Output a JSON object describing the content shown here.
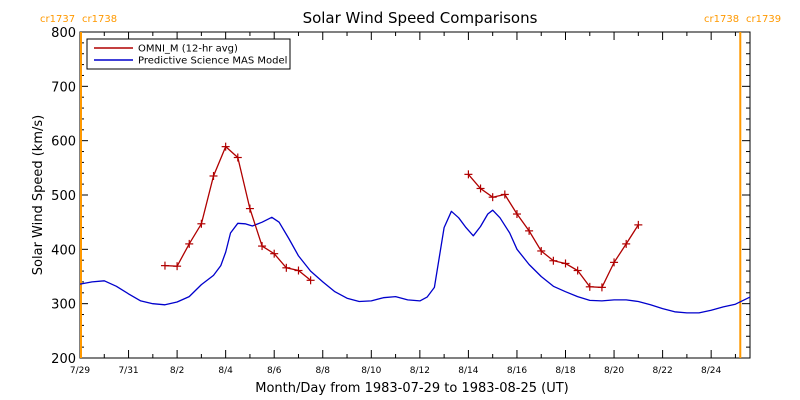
{
  "chart_data": {
    "type": "line",
    "title": "Solar Wind Speed Comparisons",
    "xlabel": "Month/Day from 1983-07-29 to 1983-08-25 (UT)",
    "ylabel": "Solar Wind Speed (km/s)",
    "xlim": [
      0,
      27.6
    ],
    "ylim": [
      200,
      800
    ],
    "x_ticks": [
      {
        "day": 0,
        "label": "7/29"
      },
      {
        "day": 2,
        "label": "7/31"
      },
      {
        "day": 4,
        "label": "8/2"
      },
      {
        "day": 6,
        "label": "8/4"
      },
      {
        "day": 8,
        "label": "8/6"
      },
      {
        "day": 10,
        "label": "8/8"
      },
      {
        "day": 12,
        "label": "8/10"
      },
      {
        "day": 14,
        "label": "8/12"
      },
      {
        "day": 16,
        "label": "8/14"
      },
      {
        "day": 18,
        "label": "8/16"
      },
      {
        "day": 20,
        "label": "8/18"
      },
      {
        "day": 22,
        "label": "8/20"
      },
      {
        "day": 24,
        "label": "8/22"
      },
      {
        "day": 26,
        "label": "8/24"
      }
    ],
    "y_ticks": [
      200,
      300,
      400,
      500,
      600,
      700,
      800
    ],
    "legend_position": "top-left",
    "carrington_markers": [
      {
        "day": 0,
        "left_label": "cr1737",
        "right_label": "cr1738",
        "color": "#ff9900"
      },
      {
        "day": 27.2,
        "left_label": "cr1738",
        "right_label": "cr1739",
        "color": "#ff9900"
      }
    ],
    "series": [
      {
        "name": "OMNI_M (12-hr avg)",
        "color": "#b00000",
        "markers": "plus",
        "segments": [
          [
            [
              3.5,
              370
            ],
            [
              4.0,
              369
            ],
            [
              4.5,
              410
            ],
            [
              5.0,
              447
            ],
            [
              5.5,
              535
            ],
            [
              6.0,
              589
            ],
            [
              6.5,
              569
            ],
            [
              7.0,
              475
            ],
            [
              7.5,
              406
            ],
            [
              8.0,
              392
            ],
            [
              8.5,
              366
            ],
            [
              9.0,
              361
            ],
            [
              9.5,
              343
            ]
          ],
          [
            [
              16.0,
              538
            ],
            [
              16.5,
              512
            ],
            [
              17.0,
              496
            ],
            [
              17.5,
              501
            ],
            [
              18.0,
              465
            ],
            [
              18.5,
              434
            ],
            [
              19.0,
              397
            ],
            [
              19.5,
              379
            ],
            [
              20.0,
              374
            ],
            [
              20.5,
              361
            ],
            [
              21.0,
              331
            ],
            [
              21.5,
              330
            ],
            [
              22.0,
              376
            ],
            [
              22.5,
              410
            ],
            [
              23.0,
              445
            ]
          ]
        ]
      },
      {
        "name": "Predictive Science MAS Model",
        "color": "#0000cc",
        "markers": "none",
        "points": [
          [
            0,
            336
          ],
          [
            0.5,
            340
          ],
          [
            1.0,
            342
          ],
          [
            1.5,
            332
          ],
          [
            2.0,
            318
          ],
          [
            2.5,
            305
          ],
          [
            3.0,
            300
          ],
          [
            3.5,
            298
          ],
          [
            4.0,
            303
          ],
          [
            4.5,
            313
          ],
          [
            5.0,
            335
          ],
          [
            5.5,
            352
          ],
          [
            5.8,
            370
          ],
          [
            6.0,
            395
          ],
          [
            6.2,
            430
          ],
          [
            6.5,
            448
          ],
          [
            6.8,
            447
          ],
          [
            7.1,
            443
          ],
          [
            7.5,
            450
          ],
          [
            7.9,
            459
          ],
          [
            8.2,
            450
          ],
          [
            8.6,
            420
          ],
          [
            9.0,
            388
          ],
          [
            9.5,
            360
          ],
          [
            10.0,
            340
          ],
          [
            10.5,
            322
          ],
          [
            11.0,
            310
          ],
          [
            11.5,
            304
          ],
          [
            12.0,
            305
          ],
          [
            12.5,
            311
          ],
          [
            13.0,
            313
          ],
          [
            13.5,
            307
          ],
          [
            14.0,
            305
          ],
          [
            14.3,
            312
          ],
          [
            14.6,
            330
          ],
          [
            15.0,
            440
          ],
          [
            15.3,
            470
          ],
          [
            15.6,
            458
          ],
          [
            15.9,
            440
          ],
          [
            16.2,
            425
          ],
          [
            16.5,
            442
          ],
          [
            16.8,
            465
          ],
          [
            17.0,
            472
          ],
          [
            17.3,
            458
          ],
          [
            17.7,
            430
          ],
          [
            18.0,
            400
          ],
          [
            18.5,
            372
          ],
          [
            19.0,
            350
          ],
          [
            19.5,
            332
          ],
          [
            20.0,
            322
          ],
          [
            20.5,
            313
          ],
          [
            21.0,
            306
          ],
          [
            21.5,
            305
          ],
          [
            22.0,
            307
          ],
          [
            22.5,
            307
          ],
          [
            23.0,
            304
          ],
          [
            23.5,
            298
          ],
          [
            24.0,
            291
          ],
          [
            24.5,
            285
          ],
          [
            25.0,
            283
          ],
          [
            25.5,
            283
          ],
          [
            26.0,
            288
          ],
          [
            26.5,
            294
          ],
          [
            27.0,
            299
          ],
          [
            27.6,
            312
          ]
        ]
      }
    ]
  }
}
